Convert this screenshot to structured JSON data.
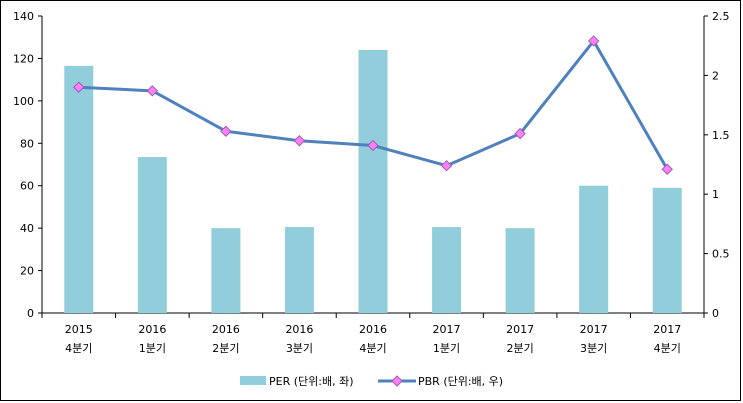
{
  "chart_data": {
    "type": "bar+line",
    "categories": [
      [
        "2015",
        "4분기"
      ],
      [
        "2016",
        "1분기"
      ],
      [
        "2016",
        "2분기"
      ],
      [
        "2016",
        "3분기"
      ],
      [
        "2016",
        "4분기"
      ],
      [
        "2017",
        "1분기"
      ],
      [
        "2017",
        "2분기"
      ],
      [
        "2017",
        "3분기"
      ],
      [
        "2017",
        "4분기"
      ]
    ],
    "series": [
      {
        "name": "PER (단위:배, 좌)",
        "type": "bar",
        "axis": "left",
        "color": "#92cddc",
        "values": [
          116.5,
          73.5,
          40,
          40.5,
          124,
          40.5,
          40,
          60,
          59
        ]
      },
      {
        "name": "PBR (단위:배, 우)",
        "type": "line",
        "axis": "right",
        "color": "#4f81bd",
        "marker_color": "#ff80ff",
        "values": [
          1.9,
          1.87,
          1.53,
          1.45,
          1.41,
          1.24,
          1.51,
          2.29,
          1.21
        ]
      }
    ],
    "yleft": {
      "min": 0,
      "max": 140,
      "step": 20,
      "ticks": [
        "0",
        "20",
        "40",
        "60",
        "80",
        "100",
        "120",
        "140"
      ]
    },
    "yright": {
      "min": 0,
      "max": 2.5,
      "step": 0.5,
      "ticks": [
        "0",
        "0.5",
        "1",
        "1.5",
        "2",
        "2.5"
      ]
    },
    "title": "",
    "xlabel": "",
    "ylabel": "",
    "grid": false,
    "legend": "bottom-center"
  }
}
